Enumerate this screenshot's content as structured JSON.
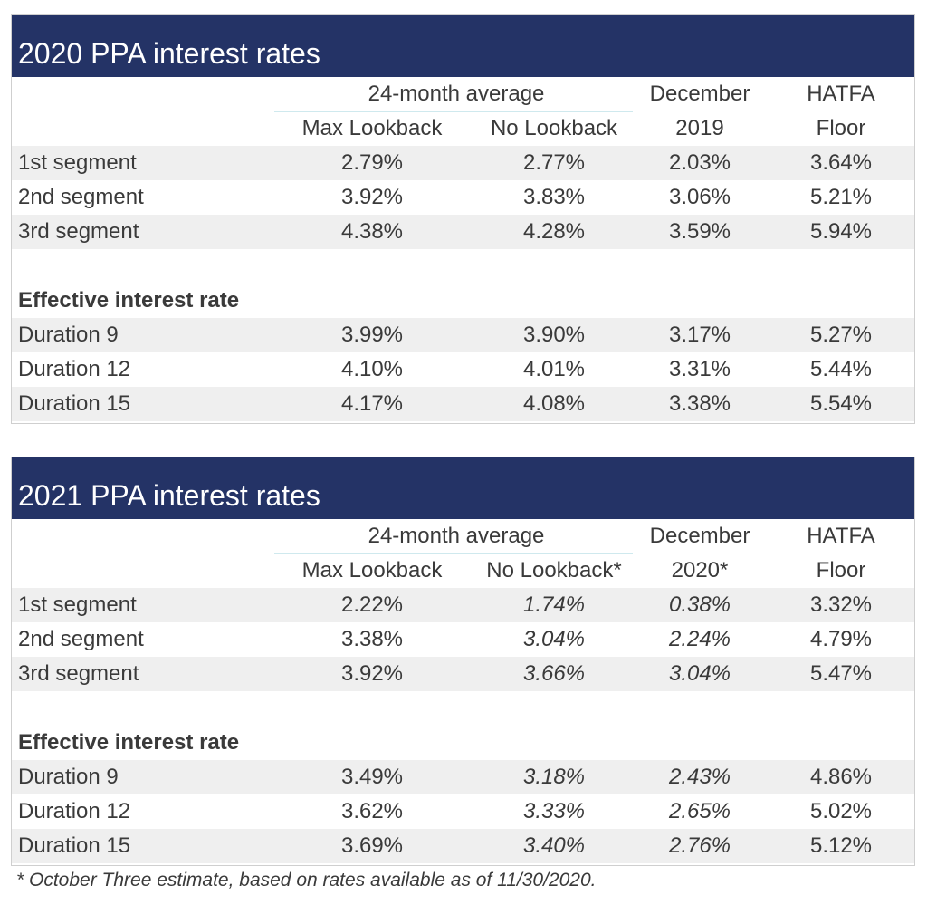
{
  "tables": [
    {
      "title": "2020 PPA interest rates",
      "group_header": "24-month average",
      "col_headers_top": [
        "December",
        "HATFA"
      ],
      "col_headers_bottom": [
        "Max Lookback",
        "No Lookback",
        "2019",
        "Floor"
      ],
      "segments": [
        {
          "label": "1st segment",
          "values": [
            "2.79%",
            "2.77%",
            "2.03%",
            "3.64%"
          ]
        },
        {
          "label": "2nd segment",
          "values": [
            "3.92%",
            "3.83%",
            "3.06%",
            "5.21%"
          ]
        },
        {
          "label": "3rd segment",
          "values": [
            "4.38%",
            "4.28%",
            "3.59%",
            "5.94%"
          ]
        }
      ],
      "effective_label": "Effective interest rate",
      "durations": [
        {
          "label": "Duration 9",
          "values": [
            "3.99%",
            "3.90%",
            "3.17%",
            "5.27%"
          ]
        },
        {
          "label": "Duration 12",
          "values": [
            "4.10%",
            "4.01%",
            "3.31%",
            "5.44%"
          ]
        },
        {
          "label": "Duration 15",
          "values": [
            "4.17%",
            "4.08%",
            "3.38%",
            "5.54%"
          ]
        }
      ]
    },
    {
      "title": "2021 PPA interest rates",
      "group_header": "24-month average",
      "col_headers_top": [
        "December",
        "HATFA"
      ],
      "col_headers_bottom": [
        "Max Lookback",
        "No Lookback*",
        "2020*",
        "Floor"
      ],
      "segments": [
        {
          "label": "1st segment",
          "values": [
            "2.22%",
            "1.74%",
            "0.38%",
            "3.32%"
          ]
        },
        {
          "label": "2nd segment",
          "values": [
            "3.38%",
            "3.04%",
            "2.24%",
            "4.79%"
          ]
        },
        {
          "label": "3rd segment",
          "values": [
            "3.92%",
            "3.66%",
            "3.04%",
            "5.47%"
          ]
        }
      ],
      "effective_label": "Effective interest rate",
      "durations": [
        {
          "label": "Duration 9",
          "values": [
            "3.49%",
            "3.18%",
            "2.43%",
            "4.86%"
          ]
        },
        {
          "label": "Duration 12",
          "values": [
            "3.62%",
            "3.33%",
            "2.65%",
            "5.02%"
          ]
        },
        {
          "label": "Duration 15",
          "values": [
            "3.69%",
            "3.40%",
            "2.76%",
            "5.12%"
          ]
        }
      ]
    }
  ],
  "footnote": "* October Three estimate, based on rates available as of 11/30/2020.",
  "colors": {
    "title_bar": "#243366",
    "shade": "#efefef",
    "rule": "#cfe9ee"
  }
}
